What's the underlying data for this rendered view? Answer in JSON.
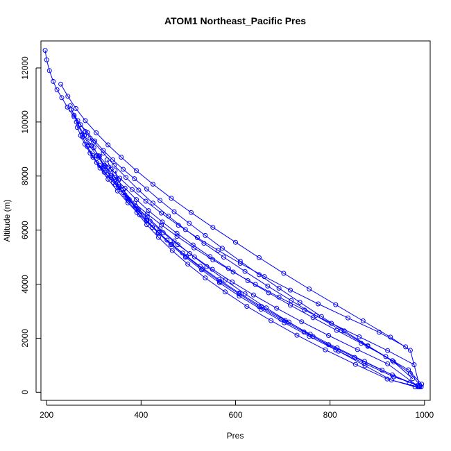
{
  "chart_data": {
    "type": "scatter",
    "title": "ATOM1 Northeast_Pacific Pres",
    "xlabel": "Pres",
    "ylabel": "Altitude (m)",
    "xlim": [
      188,
      1012
    ],
    "ylim": [
      -300,
      13000
    ],
    "xticks": [
      200,
      400,
      600,
      800,
      1000
    ],
    "yticks": [
      0,
      2000,
      4000,
      6000,
      8000,
      10000,
      12000
    ],
    "xtick_labels": [
      "200",
      "400",
      "600",
      "800",
      "1000"
    ],
    "ytick_labels": [
      "0",
      "2000",
      "4000",
      "6000",
      "8000",
      "10000",
      "12000"
    ],
    "marker": "open-circle",
    "connected": true,
    "grid": false,
    "series_color": "#0000ff",
    "series": [
      {
        "x": [
          197,
          200,
          206,
          214,
          222,
          232,
          244,
          258,
          272,
          287,
          302,
          320,
          340,
          362,
          386,
          412,
          440,
          470,
          502,
          536,
          572,
          610,
          650,
          692,
          736,
          782,
          830,
          880,
          932,
          970,
          993
        ],
        "y": [
          12650,
          12300,
          11900,
          11500,
          11200,
          10900,
          10550,
          10200,
          9900,
          9600,
          9300,
          8950,
          8600,
          8250,
          7900,
          7520,
          7100,
          6680,
          6250,
          5800,
          5330,
          4850,
          4350,
          3850,
          3330,
          2800,
          2270,
          1720,
          1170,
          700,
          200
        ]
      },
      {
        "x": [
          230,
          245,
          262,
          282,
          305,
          330,
          358,
          390,
          425,
          464,
          506,
          552,
          600,
          650,
          702,
          756,
          812,
          870,
          928,
          970,
          990
        ],
        "y": [
          11400,
          10950,
          10500,
          10050,
          9600,
          9150,
          8700,
          8200,
          7700,
          7180,
          6650,
          6100,
          5550,
          4980,
          4400,
          3820,
          3240,
          2640,
          2040,
          1550,
          200
        ]
      },
      {
        "x": [
          252,
          266,
          282,
          300,
          320,
          343,
          368,
          395,
          425,
          458,
          494,
          533,
          575,
          620,
          668,
          718,
          770,
          824,
          880,
          935,
          975
        ],
        "y": [
          10450,
          10050,
          9650,
          9250,
          8850,
          8400,
          7950,
          7480,
          7000,
          6520,
          6020,
          5510,
          5000,
          4470,
          3930,
          3390,
          2840,
          2280,
          1700,
          1120,
          500
        ]
      },
      {
        "x": [
          263,
          276,
          290,
          306,
          324,
          344,
          366,
          390,
          416,
          445,
          476,
          510,
          546,
          585,
          626,
          670,
          716,
          764,
          814,
          866,
          918,
          966,
          994
        ],
        "y": [
          10000,
          9550,
          9150,
          8750,
          8350,
          7950,
          7550,
          7130,
          6720,
          6300,
          5880,
          5450,
          5020,
          4580,
          4130,
          3680,
          3220,
          2760,
          2290,
          1810,
          1320,
          830,
          300
        ]
      },
      {
        "x": [
          276,
          286,
          298,
          312,
          328,
          346,
          366,
          388,
          413,
          440,
          470,
          503,
          539,
          578,
          620,
          665,
          713,
          764,
          818,
          874,
          930,
          980
        ],
        "y": [
          9450,
          9100,
          8750,
          8400,
          8050,
          7680,
          7300,
          6900,
          6480,
          6050,
          5600,
          5130,
          4650,
          4150,
          3640,
          3120,
          2600,
          2060,
          1520,
          980,
          450,
          200
        ]
      },
      {
        "x": [
          286,
          298,
          313,
          330,
          350,
          372,
          397,
          424,
          455,
          488,
          525,
          565,
          608,
          655,
          705,
          758,
          815,
          873,
          932,
          985
        ],
        "y": [
          9100,
          8700,
          8300,
          7880,
          7450,
          7010,
          6560,
          6100,
          5630,
          5150,
          4660,
          4170,
          3670,
          3170,
          2660,
          2150,
          1640,
          1140,
          640,
          250
        ]
      },
      {
        "x": [
          310,
          322,
          336,
          352,
          370,
          390,
          412,
          437,
          465,
          496,
          530,
          567,
          607,
          650,
          696,
          745,
          797,
          852,
          910,
          968
        ],
        "y": [
          8750,
          8400,
          8020,
          7620,
          7210,
          6790,
          6360,
          5920,
          5470,
          5020,
          4560,
          4100,
          3640,
          3170,
          2700,
          2230,
          1760,
          1290,
          820,
          350
        ]
      },
      {
        "x": [
          345,
          352,
          362,
          375,
          392,
          412,
          436,
          463,
          494,
          528,
          566,
          608,
          654,
          703,
          756,
          812,
          872,
          935,
          990
        ],
        "y": [
          8200,
          7850,
          7500,
          7130,
          6740,
          6330,
          5900,
          5460,
          5000,
          4530,
          4050,
          3560,
          3070,
          2570,
          2070,
          1570,
          1070,
          570,
          250
        ]
      },
      {
        "x": [
          250,
          258,
          268,
          280,
          295,
          312,
          332,
          355,
          381,
          410,
          443,
          479,
          519,
          563,
          610,
          661,
          716,
          775,
          838,
          904,
          960
        ],
        "y": [
          10600,
          10250,
          9880,
          9500,
          9120,
          8730,
          8330,
          7920,
          7500,
          7070,
          6630,
          6180,
          5720,
          5250,
          4770,
          4280,
          3780,
          3270,
          2750,
          2220,
          1680
        ]
      },
      {
        "x": [
          265,
          272,
          281,
          292,
          306,
          322,
          341,
          362,
          386,
          413,
          443,
          476,
          512,
          552,
          595,
          642,
          692,
          746,
          803,
          862,
          922,
          978
        ],
        "y": [
          9800,
          9500,
          9180,
          8850,
          8500,
          8140,
          7770,
          7390,
          7000,
          6600,
          6190,
          5770,
          5340,
          4900,
          4450,
          3990,
          3520,
          3040,
          2550,
          2050,
          1540,
          1020
        ]
      },
      {
        "x": [
          292,
          300,
          310,
          322,
          336,
          353,
          372,
          394,
          419,
          447,
          478,
          513,
          551,
          593,
          638,
          687,
          740,
          797,
          858,
          922,
          988
        ],
        "y": [
          9400,
          9050,
          8700,
          8330,
          7950,
          7560,
          7160,
          6750,
          6330,
          5900,
          5460,
          5010,
          4550,
          4080,
          3600,
          3110,
          2610,
          2100,
          1580,
          1050,
          200
        ]
      },
      {
        "x": [
          328,
          336,
          346,
          358,
          373,
          391,
          412,
          437,
          466,
          499,
          536,
          578,
          624,
          675,
          730,
          790,
          854,
          921,
          986
        ],
        "y": [
          8600,
          8250,
          7880,
          7490,
          7080,
          6650,
          6200,
          5730,
          5240,
          4740,
          4230,
          3710,
          3180,
          2650,
          2110,
          1570,
          1030,
          490,
          200
        ]
      }
    ]
  }
}
